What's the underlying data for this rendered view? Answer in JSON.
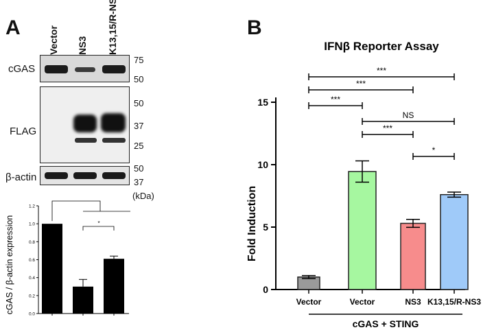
{
  "panel_a": {
    "letter": "A",
    "lanes": [
      "Vector",
      "NS3",
      "K13,15/R-NS3"
    ],
    "blots": {
      "cgas_label": "cGAS",
      "flag_label": "FLAG",
      "actin_label": "β-actin",
      "mw_cgas": [
        "75",
        "50"
      ],
      "mw_flag": [
        "50",
        "37",
        "25"
      ],
      "mw_actin": [
        "50",
        "37"
      ],
      "kda_label": "(kDa)"
    }
  },
  "panel_b": {
    "letter": "B",
    "group_label": "cGAS + STING"
  },
  "chart_data": [
    {
      "type": "bar",
      "title": "",
      "xlabel": "",
      "ylabel": "cGAS / β-actin expression",
      "categories": [
        "",
        "",
        ""
      ],
      "values": [
        1.0,
        0.3,
        0.61
      ],
      "errors": [
        0.0,
        0.08,
        0.03
      ],
      "ylim": [
        0.0,
        1.2
      ],
      "yticks": [
        "0.0",
        "0.2",
        "0.4",
        "0.6",
        "0.8",
        "1.0",
        "1.2"
      ],
      "bar_color": "#000000",
      "grid": false,
      "significance": [
        {
          "from": 0,
          "to": [
            1,
            2
          ],
          "label": "**"
        },
        {
          "from": 1,
          "to": 2,
          "label": "*"
        }
      ]
    },
    {
      "type": "bar",
      "title": "IFNβ Reporter Assay",
      "xlabel": "",
      "ylabel": "Fold Induction",
      "categories": [
        "Vector",
        "Vector",
        "NS3",
        "K13,15/R-NS3"
      ],
      "values": [
        1.0,
        9.45,
        5.3,
        7.6
      ],
      "errors": [
        0.12,
        0.85,
        0.32,
        0.2
      ],
      "colors": [
        "#9a9a9a",
        "#a6f7a0",
        "#f78c8c",
        "#9fcaf9"
      ],
      "ylim": [
        0,
        15
      ],
      "yticks": [
        "0",
        "5",
        "10",
        "15"
      ],
      "grid": false,
      "significance": [
        {
          "from": 0,
          "to": 3,
          "label": "***"
        },
        {
          "from": 0,
          "to": 2,
          "label": "***"
        },
        {
          "from": 0,
          "to": 1,
          "label": "***"
        },
        {
          "from": 1,
          "to": 3,
          "label": "NS"
        },
        {
          "from": 1,
          "to": 2,
          "label": "***"
        },
        {
          "from": 2,
          "to": 3,
          "label": "*"
        }
      ]
    }
  ]
}
